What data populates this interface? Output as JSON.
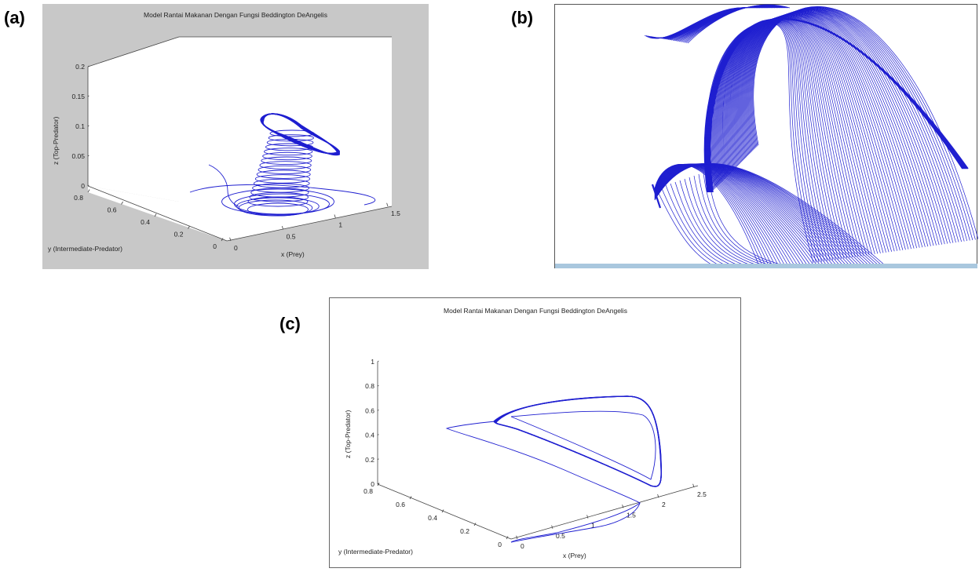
{
  "labels": {
    "a": "(a)",
    "b": "(b)",
    "c": "(c)"
  },
  "colors": {
    "trajectory": "#1f1fd0",
    "figure_bg_a": "#c8c8c8",
    "axes_face": "#ffffff"
  },
  "chart_data": [
    {
      "panel": "(a)",
      "type": "line",
      "projection": "3d",
      "title": "Model Rantai Makanan Dengan Fungsi Beddington DeAngelis",
      "xlabel": "x (Prey)",
      "ylabel": "y (Intermediate-Predator)",
      "zlabel": "z (Top-Predator)",
      "xlim": [
        0,
        1.5
      ],
      "ylim": [
        0,
        0.8
      ],
      "zlim": [
        0,
        0.2
      ],
      "xticks": [
        "0",
        "0.5",
        "1",
        "1.5"
      ],
      "yticks": [
        "0",
        "0.2",
        "0.4",
        "0.6",
        "0.8"
      ],
      "zticks": [
        "0",
        "0.05",
        "0.1",
        "0.15",
        "0.2"
      ],
      "grid": false,
      "series": [
        {
          "description_values": "spiral trajectory rising from z=0 to about z=0.11 and converging to a limit cycle"
        }
      ]
    },
    {
      "panel": "(b)",
      "type": "line",
      "projection": "3d",
      "title": "",
      "series": [
        {
          "description_values": "zoomed view of dense trajectory surface"
        }
      ]
    },
    {
      "panel": "(c)",
      "type": "line",
      "projection": "3d",
      "title": "Model Rantai Makanan Dengan Fungsi Beddington DeAngelis",
      "xlabel": "x (Prey)",
      "ylabel": "y (Intermediate-Predator)",
      "zlabel": "z (Top-Predator)",
      "xlim": [
        0,
        2.5
      ],
      "ylim": [
        0,
        0.8
      ],
      "zlim": [
        0,
        1
      ],
      "xticks": [
        "0",
        "0.5",
        "1",
        "1.5",
        "2",
        "2.5"
      ],
      "yticks": [
        "0",
        "0.2",
        "0.4",
        "0.6",
        "0.8"
      ],
      "zticks": [
        "0",
        "0.2",
        "0.4",
        "0.6",
        "0.8",
        "1"
      ],
      "grid": false
    }
  ]
}
